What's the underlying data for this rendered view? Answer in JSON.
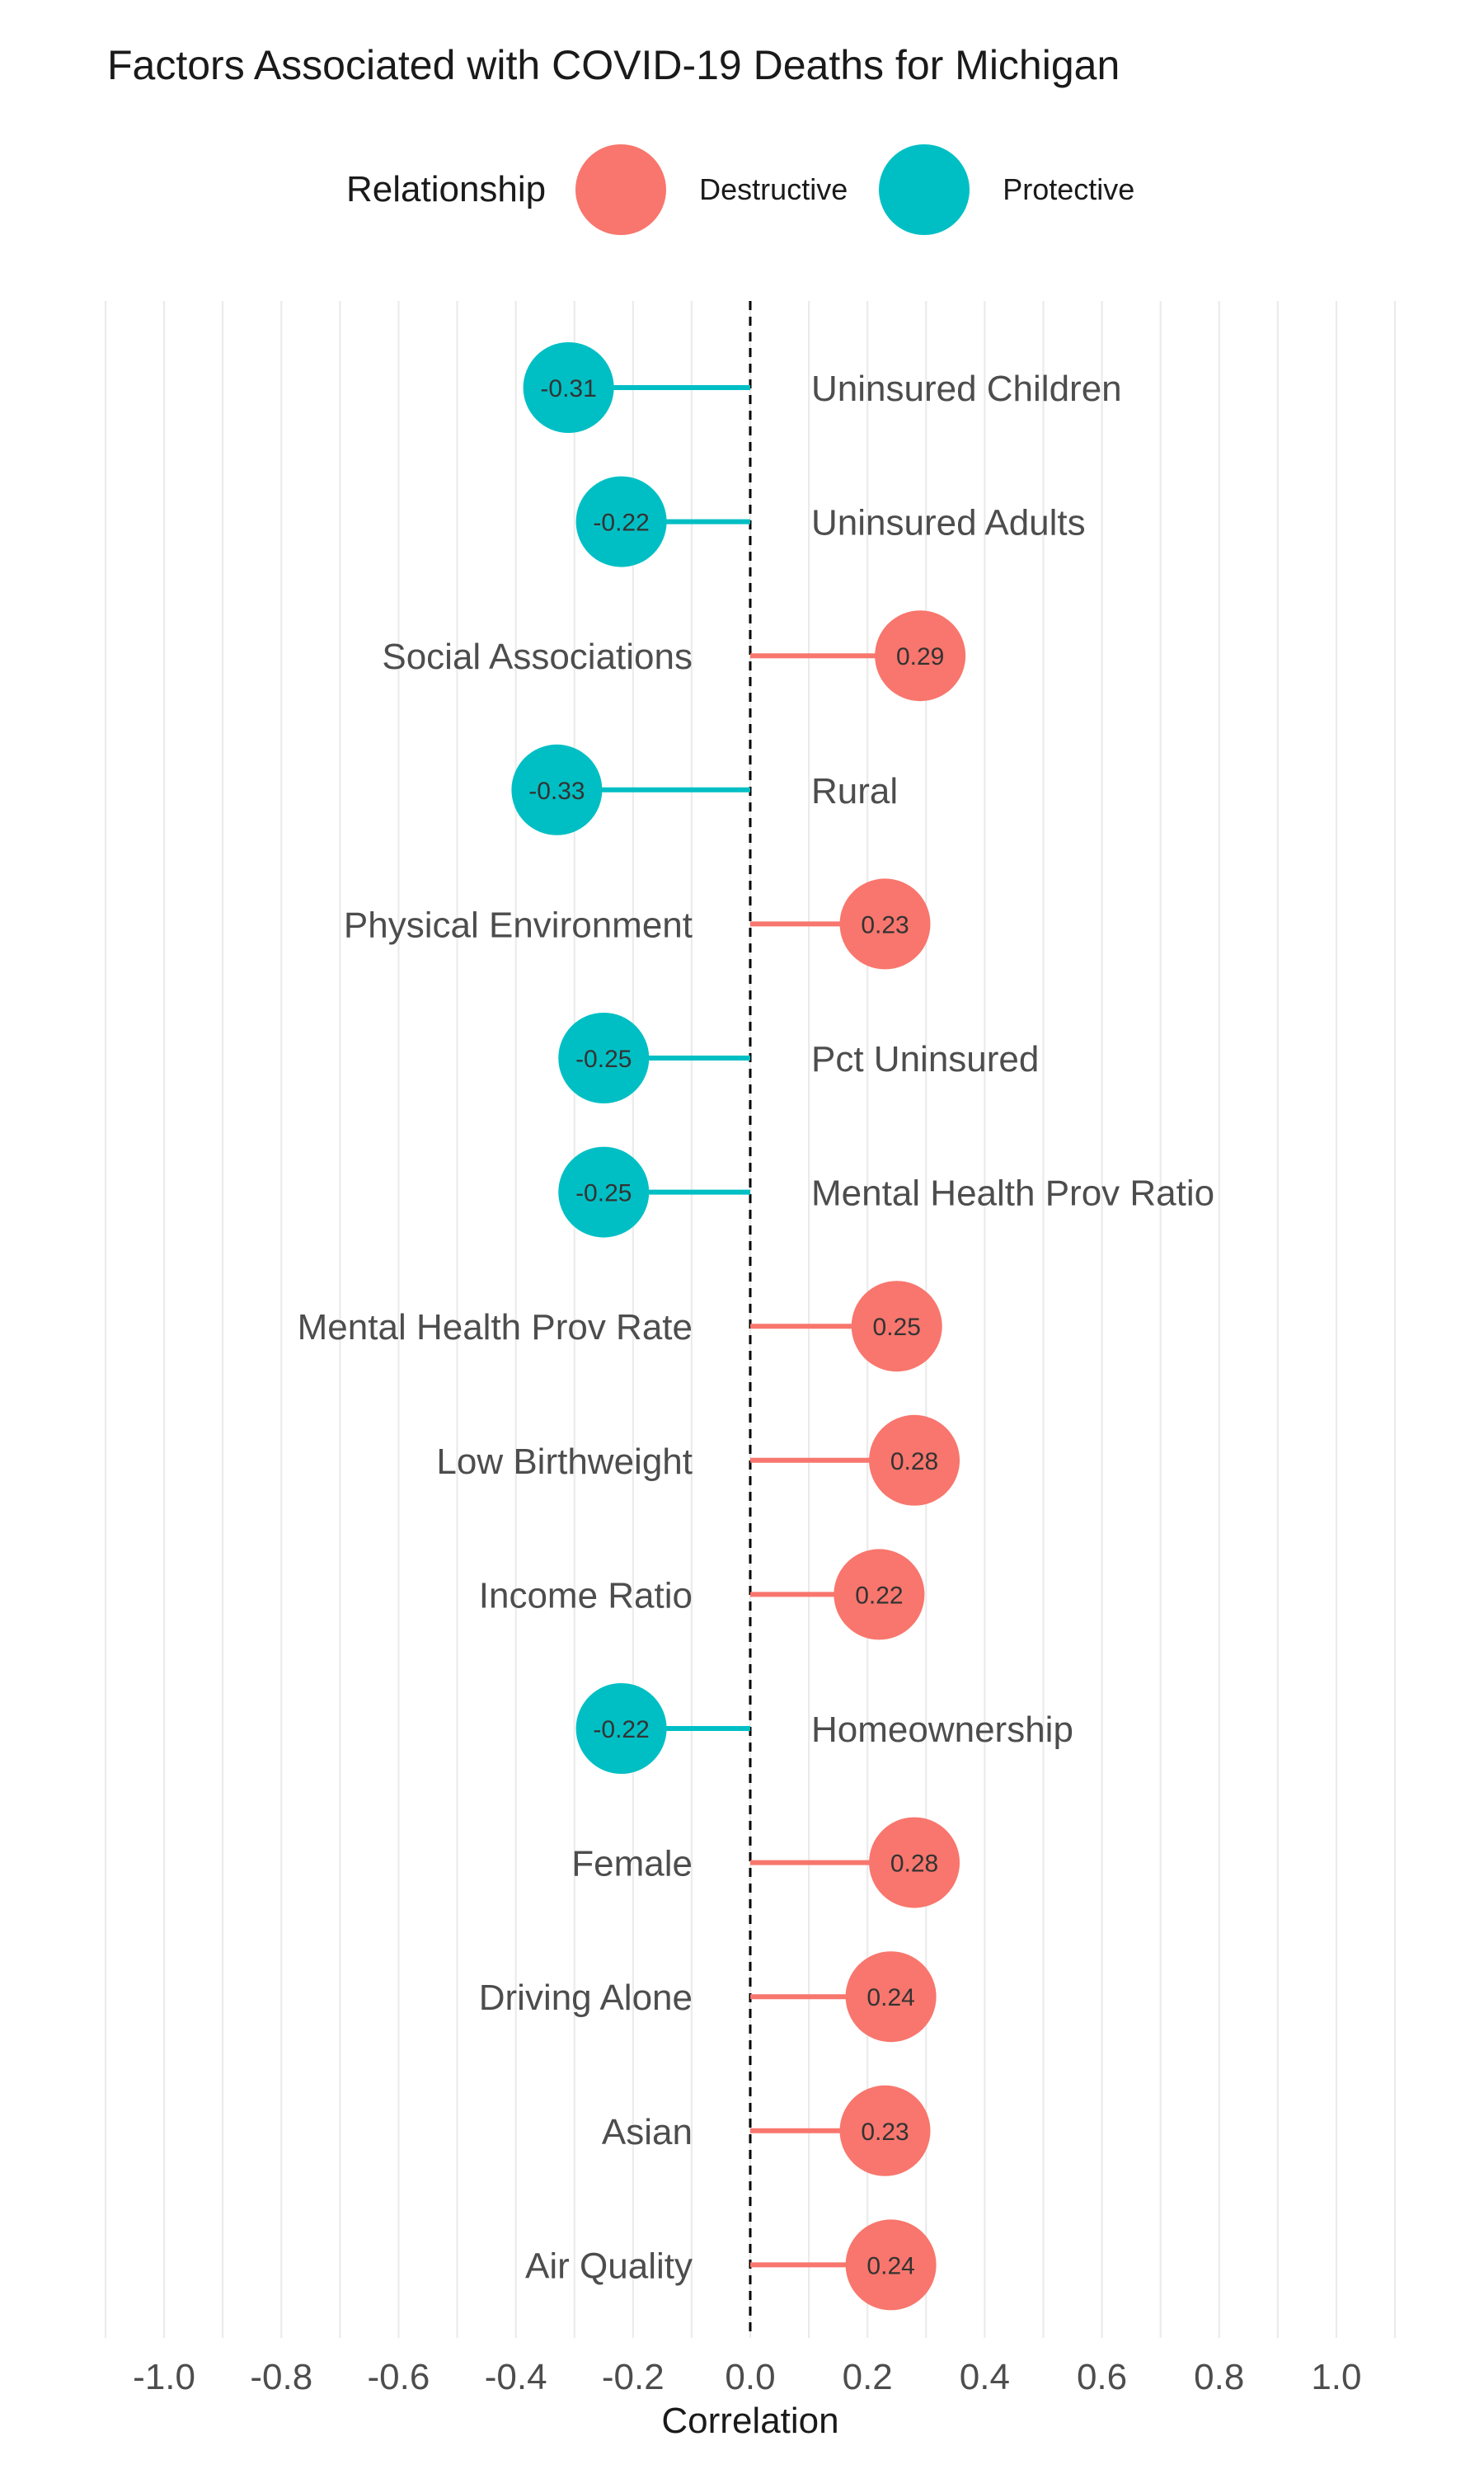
{
  "chart_data": {
    "type": "lollipop",
    "title": "Factors Associated with COVID-19 Deaths for Michigan",
    "xlabel": "Correlation",
    "ylabel": "",
    "xlim": [
      -1.1,
      1.1
    ],
    "x_ticks": [
      "-1.0",
      "-0.8",
      "-0.6",
      "-0.4",
      "-0.2",
      "0.0",
      "0.2",
      "0.4",
      "0.6",
      "0.8",
      "1.0"
    ],
    "x_tick_values": [
      -1.0,
      -0.8,
      -0.6,
      -0.4,
      -0.2,
      0.0,
      0.2,
      0.4,
      0.6,
      0.8,
      1.0
    ],
    "reference_line": 0.0,
    "grid": "vertical",
    "legend": {
      "title": "Relationship",
      "position": "top",
      "entries": [
        {
          "label": "Destructive",
          "color": "#F8766D"
        },
        {
          "label": "Protective",
          "color": "#00BFC4"
        }
      ]
    },
    "points": [
      {
        "label": "Uninsured Children",
        "value": -0.31,
        "value_label": "-0.31",
        "relationship": "Protective"
      },
      {
        "label": "Uninsured Adults",
        "value": -0.22,
        "value_label": "-0.22",
        "relationship": "Protective"
      },
      {
        "label": "Social Associations",
        "value": 0.29,
        "value_label": "0.29",
        "relationship": "Destructive"
      },
      {
        "label": "Rural",
        "value": -0.33,
        "value_label": "-0.33",
        "relationship": "Protective"
      },
      {
        "label": "Physical Environment",
        "value": 0.23,
        "value_label": "0.23",
        "relationship": "Destructive"
      },
      {
        "label": "Pct Uninsured",
        "value": -0.25,
        "value_label": "-0.25",
        "relationship": "Protective"
      },
      {
        "label": "Mental Health Prov Ratio",
        "value": -0.25,
        "value_label": "-0.25",
        "relationship": "Protective"
      },
      {
        "label": "Mental Health Prov Rate",
        "value": 0.25,
        "value_label": "0.25",
        "relationship": "Destructive"
      },
      {
        "label": "Low Birthweight",
        "value": 0.28,
        "value_label": "0.28",
        "relationship": "Destructive"
      },
      {
        "label": "Income Ratio",
        "value": 0.22,
        "value_label": "0.22",
        "relationship": "Destructive"
      },
      {
        "label": "Homeownership",
        "value": -0.22,
        "value_label": "-0.22",
        "relationship": "Protective"
      },
      {
        "label": "Female",
        "value": 0.28,
        "value_label": "0.28",
        "relationship": "Destructive"
      },
      {
        "label": "Driving Alone",
        "value": 0.24,
        "value_label": "0.24",
        "relationship": "Destructive"
      },
      {
        "label": "Asian",
        "value": 0.23,
        "value_label": "0.23",
        "relationship": "Destructive"
      },
      {
        "label": "Air Quality",
        "value": 0.24,
        "value_label": "0.24",
        "relationship": "Destructive"
      }
    ]
  }
}
